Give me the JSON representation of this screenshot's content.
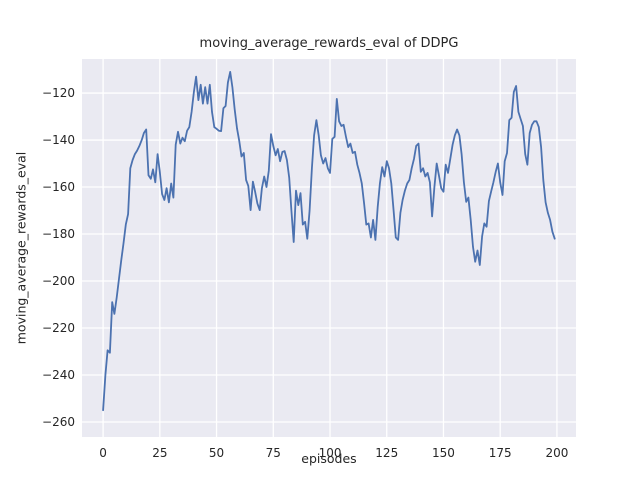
{
  "figure": {
    "background": "#ffffff"
  },
  "chart_data": {
    "type": "line",
    "title": "moving_average_rewards_eval of DDPG",
    "xlabel": "episodes",
    "ylabel": "moving_average_rewards_eval",
    "grid": true,
    "legend": false,
    "x_ticks": [
      0,
      25,
      50,
      75,
      100,
      125,
      150,
      175,
      200
    ],
    "y_ticks": [
      -260,
      -240,
      -220,
      -200,
      -180,
      -160,
      -140,
      -120
    ],
    "xlim": [
      -9.3,
      208.4
    ],
    "ylim": [
      -266.4,
      -105.5
    ],
    "style": {
      "line_color": "#4c72b0",
      "line_width": 1.8,
      "axes_background": "#eaeaf2",
      "grid_color": "#ffffff",
      "text_color": "#262626"
    },
    "series": [
      {
        "name": "moving_average_rewards_eval",
        "x_start": 0,
        "x_step": 1,
        "values": [
          -255,
          -240,
          -229.5,
          -230.5,
          -209,
          -214,
          -207,
          -199,
          -191,
          -184,
          -176,
          -171.5,
          -152,
          -148.5,
          -146,
          -144.5,
          -142.5,
          -140,
          -137,
          -135.5,
          -155,
          -156.5,
          -152.5,
          -158,
          -146,
          -153.5,
          -163,
          -165.5,
          -160.5,
          -166.5,
          -158.5,
          -164.5,
          -142,
          -136.5,
          -141.5,
          -139,
          -140.5,
          -136,
          -134.5,
          -128,
          -119.5,
          -113,
          -123,
          -116.5,
          -124.5,
          -117.5,
          -124.5,
          -116.5,
          -128,
          -134.5,
          -135.2,
          -136,
          -136.2,
          -126.5,
          -125.5,
          -115.5,
          -111,
          -117.5,
          -127,
          -135,
          -140.5,
          -147,
          -145.5,
          -157,
          -159.5,
          -169.8,
          -157.7,
          -162,
          -167,
          -169.8,
          -160.5,
          -155.5,
          -160,
          -153,
          -137.5,
          -142.5,
          -146.5,
          -143.8,
          -149,
          -145,
          -144.7,
          -148.5,
          -156,
          -170,
          -183.4,
          -161.5,
          -167.7,
          -162.6,
          -176,
          -174.8,
          -182,
          -170,
          -152,
          -138,
          -131.5,
          -138,
          -146.5,
          -150,
          -147.7,
          -152,
          -154,
          -139.5,
          -138.6,
          -122.5,
          -132,
          -134,
          -133.5,
          -138.5,
          -143,
          -141.5,
          -145.5,
          -145,
          -150.5,
          -154,
          -158.5,
          -167,
          -176,
          -175.5,
          -181.5,
          -174,
          -182.5,
          -168.5,
          -158.5,
          -151.5,
          -155.5,
          -149,
          -152,
          -158.5,
          -170,
          -181.5,
          -182.5,
          -171,
          -165.5,
          -161.5,
          -158.5,
          -157,
          -152,
          -148,
          -142.5,
          -141.5,
          -153.5,
          -152,
          -155.5,
          -154,
          -158,
          -172.5,
          -160,
          -150,
          -155,
          -160.5,
          -162,
          -150.5,
          -154,
          -148,
          -142,
          -138,
          -135.5,
          -138,
          -146,
          -158,
          -166.3,
          -164.5,
          -174,
          -185.5,
          -191.8,
          -187,
          -193.2,
          -181,
          -175.5,
          -176.9,
          -166,
          -162,
          -158,
          -153.5,
          -150,
          -158,
          -163.4,
          -149,
          -145.5,
          -131.5,
          -130.5,
          -119.5,
          -117,
          -128,
          -131,
          -134,
          -146,
          -150.5,
          -137,
          -133.5,
          -132,
          -132,
          -134.5,
          -143,
          -157,
          -166.5,
          -171,
          -174,
          -179,
          -182
        ]
      }
    ]
  }
}
